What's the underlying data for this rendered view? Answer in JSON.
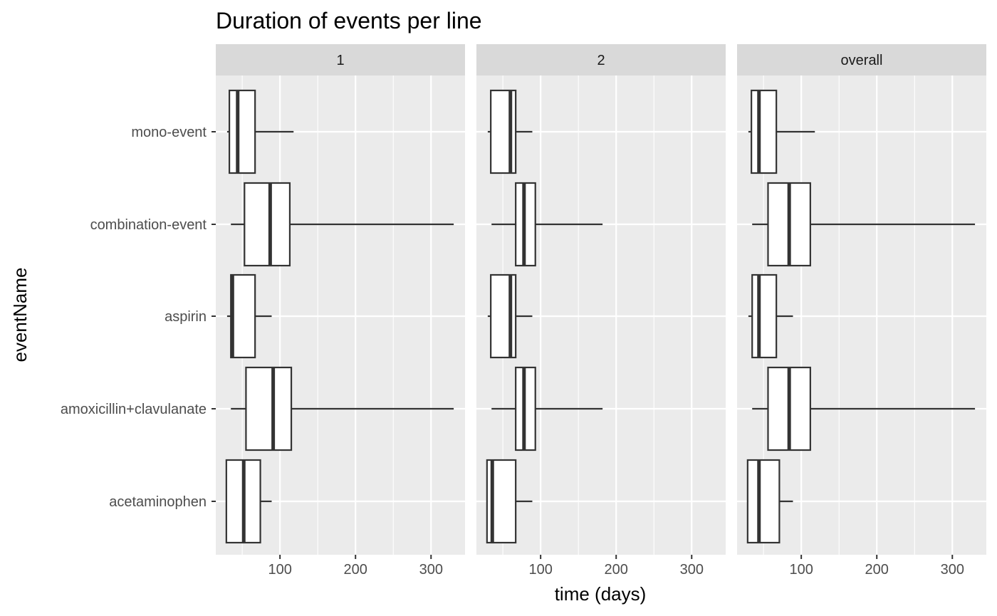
{
  "chart_data": {
    "type": "boxplot",
    "title": "Duration of events per line",
    "xlabel": "time (days)",
    "ylabel": "eventName",
    "xlim": [
      15,
      345
    ],
    "xticks": [
      100,
      200,
      300
    ],
    "categories": [
      "mono-event",
      "combination-event",
      "aspirin",
      "amoxicillin+clavulanate",
      "acetaminophen"
    ],
    "facets": [
      {
        "label": "1",
        "boxes": [
          {
            "category": "mono-event",
            "min": 30,
            "q1": 33,
            "median": 44,
            "q3": 67,
            "max": 118
          },
          {
            "category": "combination-event",
            "min": 35,
            "q1": 53,
            "median": 87,
            "q3": 113,
            "max": 330
          },
          {
            "category": "aspirin",
            "min": 30,
            "q1": 35,
            "median": 37,
            "q3": 67,
            "max": 89
          },
          {
            "category": "amoxicillin+clavulanate",
            "min": 35,
            "q1": 55,
            "median": 91,
            "q3": 115,
            "max": 330
          },
          {
            "category": "acetaminophen",
            "min": 29,
            "q1": 29,
            "median": 52,
            "q3": 74,
            "max": 89
          }
        ]
      },
      {
        "label": "2",
        "boxes": [
          {
            "category": "mono-event",
            "min": 30,
            "q1": 34,
            "median": 60,
            "q3": 67,
            "max": 89
          },
          {
            "category": "combination-event",
            "min": 35,
            "q1": 67,
            "median": 78,
            "q3": 93,
            "max": 182
          },
          {
            "category": "aspirin",
            "min": 30,
            "q1": 34,
            "median": 60,
            "q3": 67,
            "max": 89
          },
          {
            "category": "amoxicillin+clavulanate",
            "min": 35,
            "q1": 67,
            "median": 78,
            "q3": 93,
            "max": 182
          },
          {
            "category": "acetaminophen",
            "min": 29,
            "q1": 29,
            "median": 36,
            "q3": 67,
            "max": 89
          }
        ]
      },
      {
        "label": "overall",
        "boxes": [
          {
            "category": "mono-event",
            "min": 30,
            "q1": 34,
            "median": 44,
            "q3": 67,
            "max": 118
          },
          {
            "category": "combination-event",
            "min": 35,
            "q1": 56,
            "median": 84,
            "q3": 112,
            "max": 330
          },
          {
            "category": "aspirin",
            "min": 30,
            "q1": 35,
            "median": 44,
            "q3": 67,
            "max": 89
          },
          {
            "category": "amoxicillin+clavulanate",
            "min": 35,
            "q1": 56,
            "median": 84,
            "q3": 112,
            "max": 330
          },
          {
            "category": "acetaminophen",
            "min": 29,
            "q1": 29,
            "median": 44,
            "q3": 71,
            "max": 89
          }
        ]
      }
    ],
    "grid": true,
    "colors": {
      "panel_background": "#ebebeb",
      "strip_background": "#d9d9d9",
      "grid": "#ffffff",
      "box_fill": "#ffffff",
      "box_outline": "#333333"
    }
  }
}
